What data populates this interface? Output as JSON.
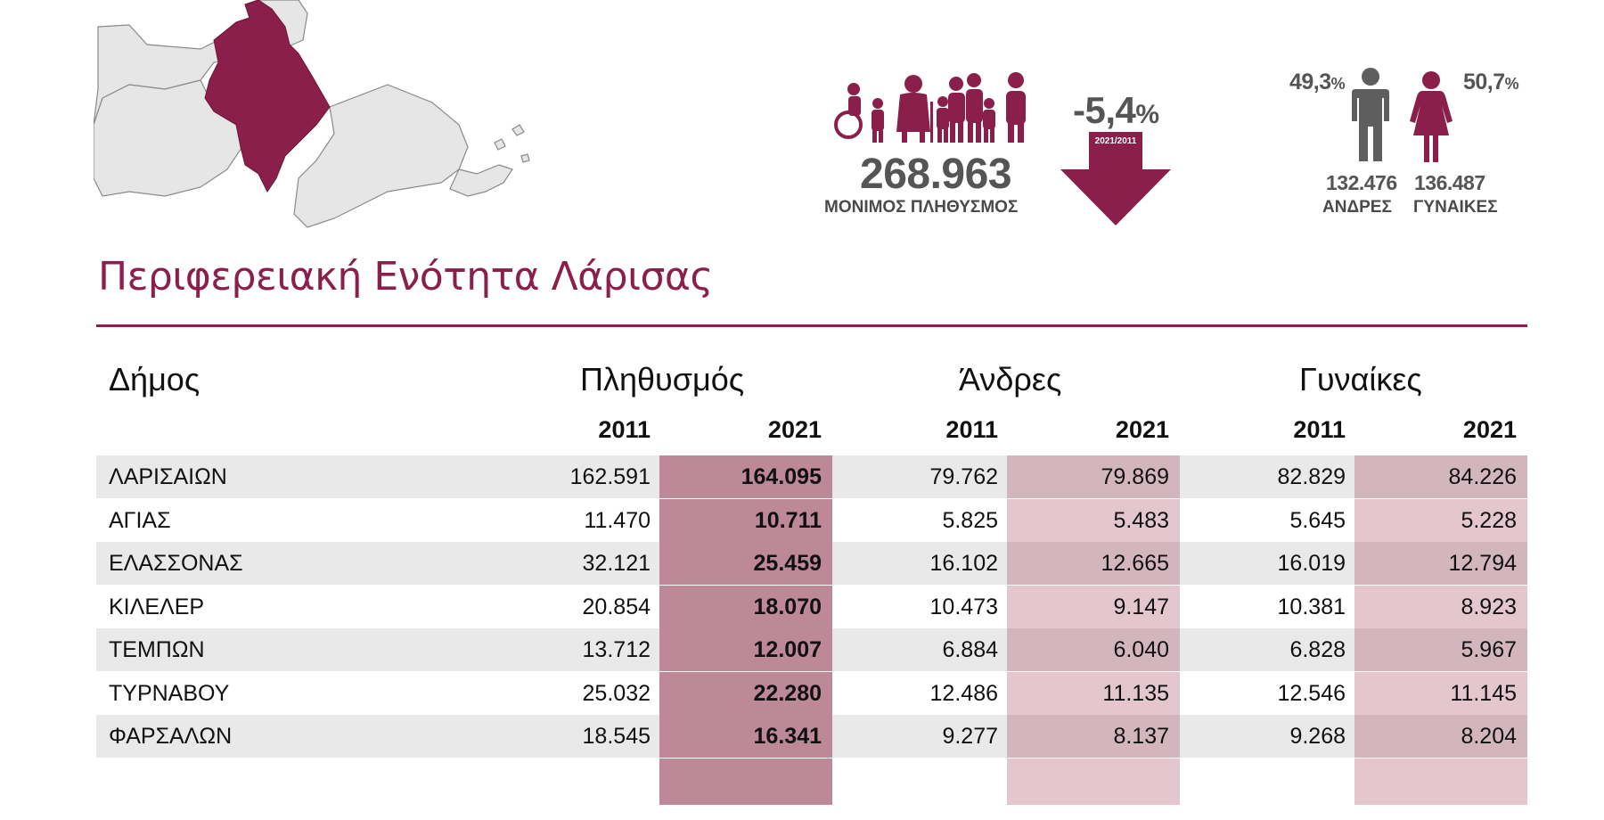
{
  "colors": {
    "accent": "#8b1f4b",
    "pop_column": "#bd8898",
    "light_column": "#e4c7ce",
    "row_shade": "#e9e9ea",
    "gray_icon": "#5e5e5e"
  },
  "summary": {
    "population_value": "268.963",
    "population_label": "ΜΟΝΙΜΟΣ ΠΛΗΘΥΣΜΟΣ",
    "change_value": "-5,4",
    "change_unit": "%",
    "change_period": "2021/2011",
    "men_pct": "49,3",
    "women_pct": "50,7",
    "pct_unit": "%",
    "men_value": "132.476",
    "men_label": "ΑΝΔΡΕΣ",
    "women_value": "136.487",
    "women_label": "ΓΥΝΑΙΚΕΣ"
  },
  "title": "Περιφερειακή Ενότητα Λάρισας",
  "table": {
    "headers": {
      "municipality": "Δήμος",
      "population": "Πληθυσμός",
      "men": "Άνδρες",
      "women": "Γυναίκες"
    },
    "years": [
      "2011",
      "2021",
      "2011",
      "2021",
      "2011",
      "2021"
    ],
    "rows": [
      {
        "name": "ΛΑΡΙΣΑΙΩΝ",
        "pop2011": "162.591",
        "pop2021": "164.095",
        "men2011": "79.762",
        "men2021": "79.869",
        "women2011": "82.829",
        "women2021": "84.226"
      },
      {
        "name": "ΑΓΙΑΣ",
        "pop2011": "11.470",
        "pop2021": "10.711",
        "men2011": "5.825",
        "men2021": "5.483",
        "women2011": "5.645",
        "women2021": "5.228"
      },
      {
        "name": "ΕΛΑΣΣΟΝΑΣ",
        "pop2011": "32.121",
        "pop2021": "25.459",
        "men2011": "16.102",
        "men2021": "12.665",
        "women2011": "16.019",
        "women2021": "12.794"
      },
      {
        "name": "ΚΙΛΕΛΕΡ",
        "pop2011": "20.854",
        "pop2021": "18.070",
        "men2011": "10.473",
        "men2021": "9.147",
        "women2011": "10.381",
        "women2021": "8.923"
      },
      {
        "name": "ΤΕΜΠΩΝ",
        "pop2011": "13.712",
        "pop2021": "12.007",
        "men2011": "6.884",
        "men2021": "6.040",
        "women2011": "6.828",
        "women2021": "5.967"
      },
      {
        "name": "ΤΥΡΝΑΒΟΥ",
        "pop2011": "25.032",
        "pop2021": "22.280",
        "men2011": "12.486",
        "men2021": "11.135",
        "women2011": "12.546",
        "women2021": "11.145"
      },
      {
        "name": "ΦΑΡΣΑΛΩΝ",
        "pop2011": "18.545",
        "pop2021": "16.341",
        "men2011": "9.277",
        "men2021": "8.137",
        "women2011": "9.268",
        "women2021": "8.204"
      }
    ]
  }
}
